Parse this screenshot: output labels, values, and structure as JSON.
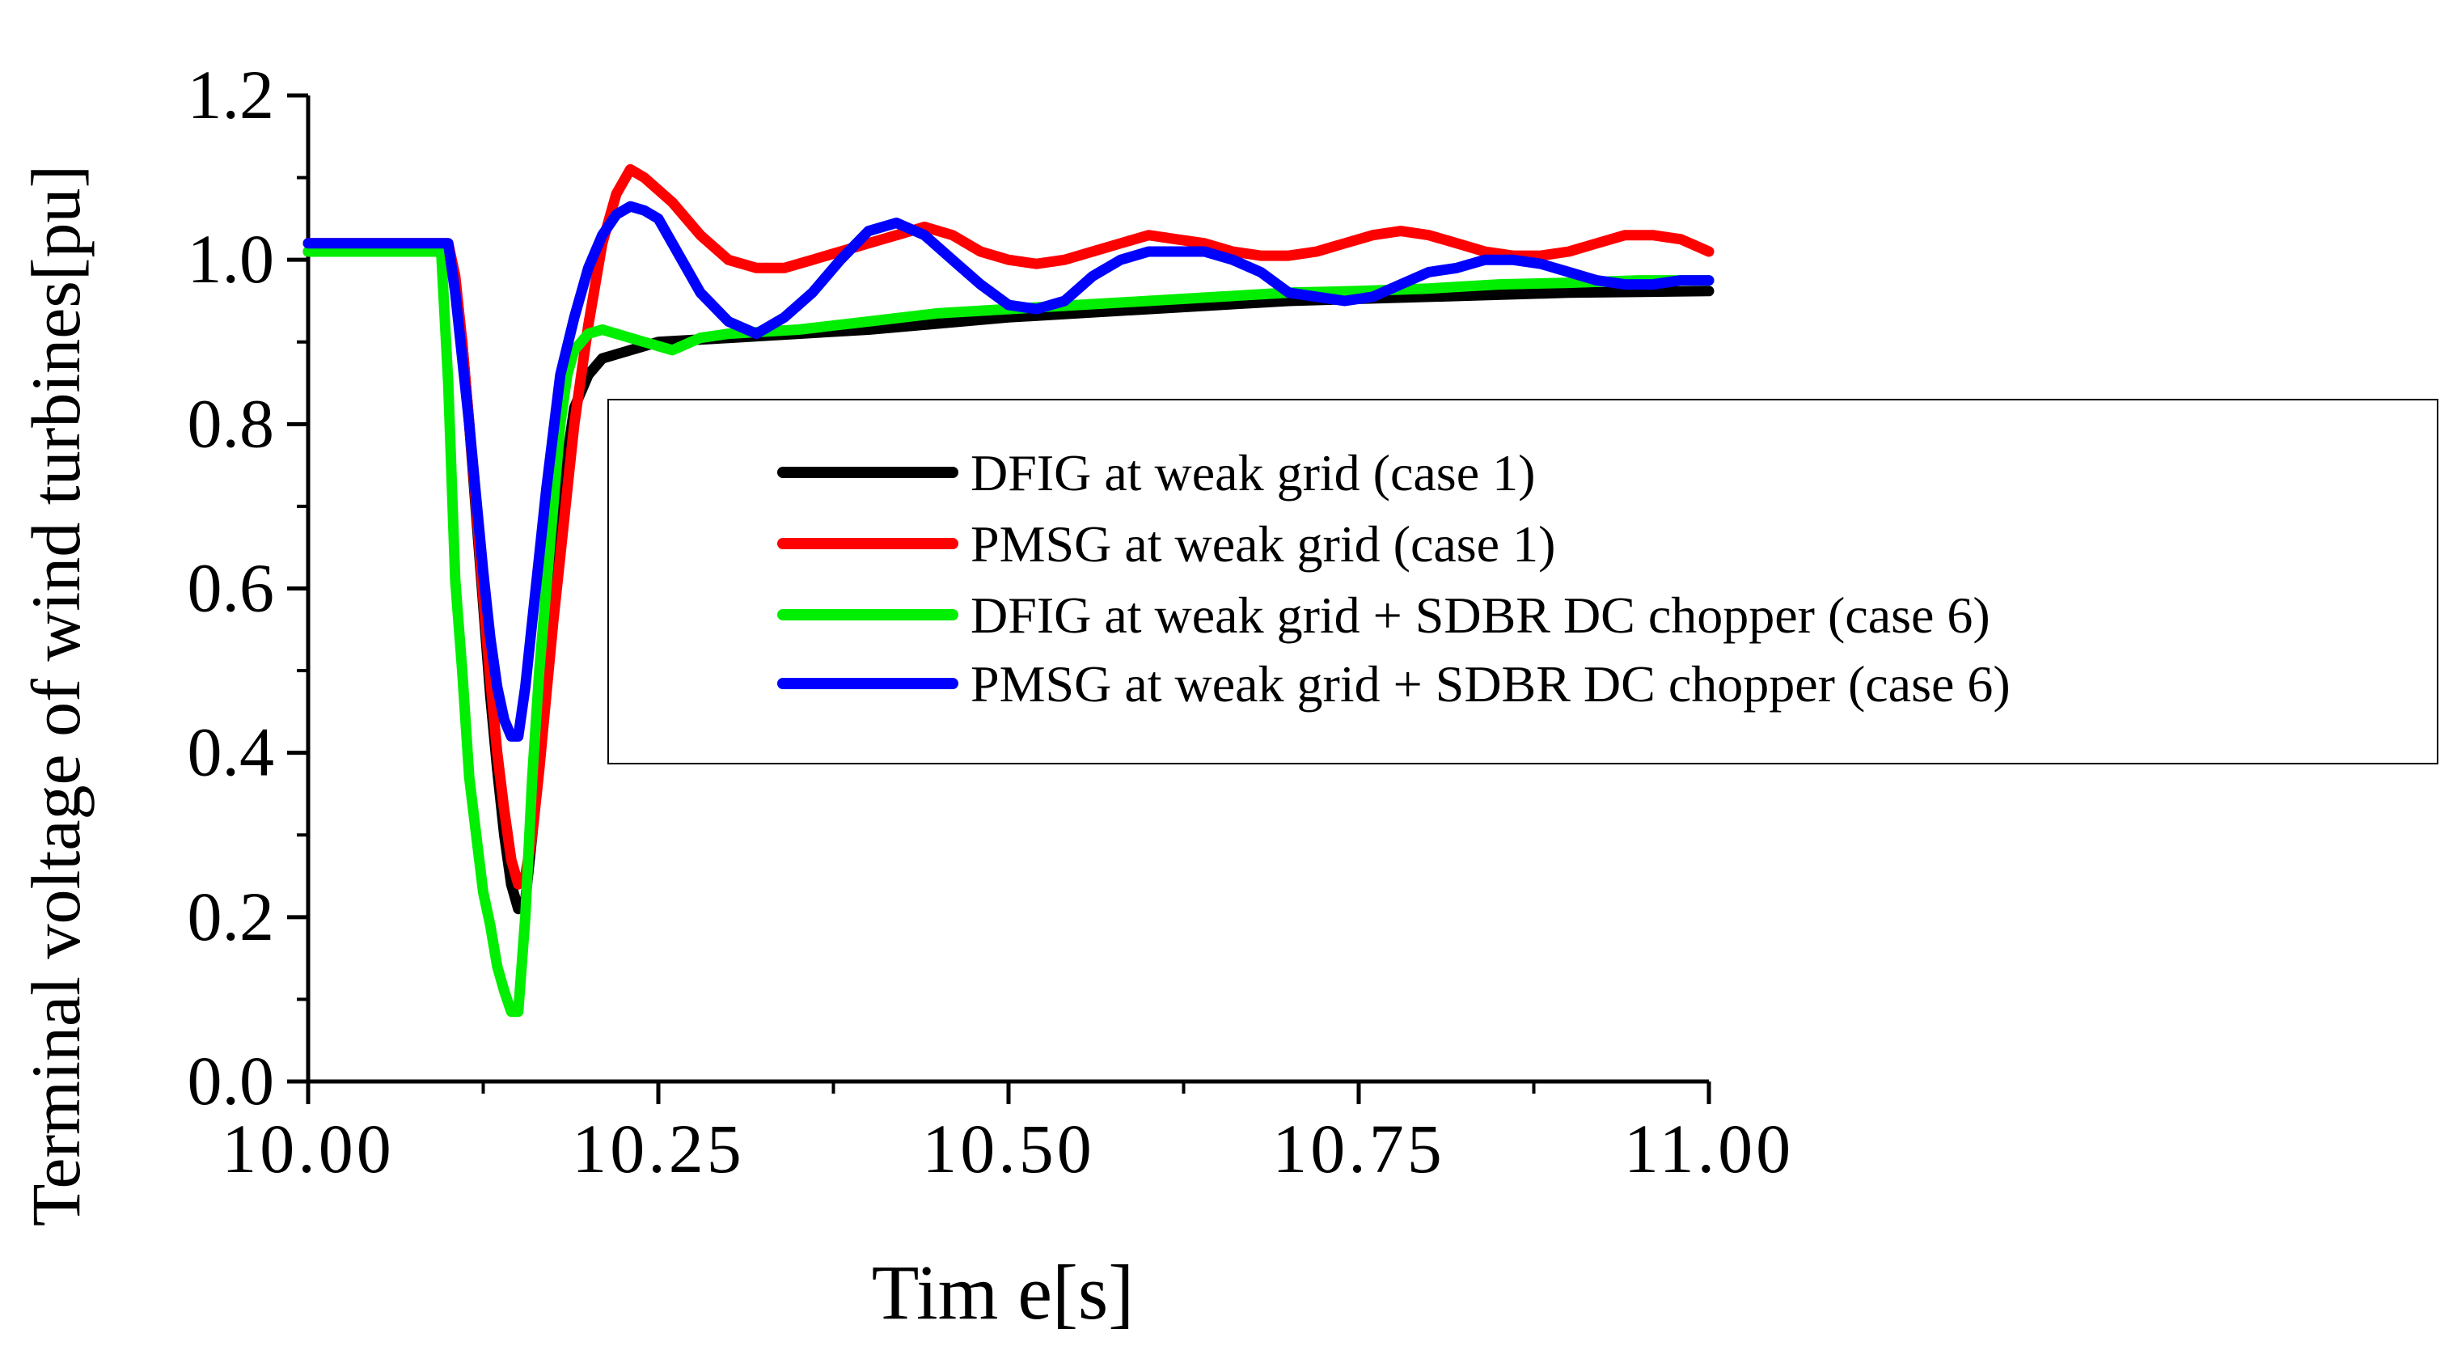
{
  "chart_data": {
    "type": "line",
    "title": "",
    "xlabel": "Tim e[s]",
    "ylabel": "Terminal voltage of wind turbines[pu]",
    "xlim": [
      10.0,
      11.0
    ],
    "ylim": [
      0.0,
      1.2
    ],
    "xticks": [
      10.0,
      10.25,
      10.5,
      10.75,
      11.0
    ],
    "xtick_labels": [
      "10.00",
      "10.25",
      "10.50",
      "10.75",
      "11.00"
    ],
    "yticks": [
      0.0,
      0.2,
      0.4,
      0.6,
      0.8,
      1.0,
      1.2
    ],
    "ytick_labels": [
      "0.0",
      "0.2",
      "0.4",
      "0.6",
      "0.8",
      "1.0",
      "1.2"
    ],
    "grid": false,
    "legend_position": "center-right",
    "series": [
      {
        "name": "DFIG at weak grid (case 1)",
        "color": "#000000",
        "points": [
          [
            10.0,
            1.01
          ],
          [
            10.1,
            1.01
          ],
          [
            10.105,
            0.97
          ],
          [
            10.11,
            0.9
          ],
          [
            10.115,
            0.8
          ],
          [
            10.12,
            0.69
          ],
          [
            10.125,
            0.58
          ],
          [
            10.13,
            0.47
          ],
          [
            10.135,
            0.38
          ],
          [
            10.14,
            0.3
          ],
          [
            10.145,
            0.24
          ],
          [
            10.15,
            0.21
          ],
          [
            10.155,
            0.22
          ],
          [
            10.16,
            0.3
          ],
          [
            10.165,
            0.4
          ],
          [
            10.17,
            0.5
          ],
          [
            10.175,
            0.6
          ],
          [
            10.18,
            0.68
          ],
          [
            10.185,
            0.76
          ],
          [
            10.19,
            0.82
          ],
          [
            10.2,
            0.86
          ],
          [
            10.21,
            0.88
          ],
          [
            10.25,
            0.9
          ],
          [
            10.3,
            0.905
          ],
          [
            10.4,
            0.915
          ],
          [
            10.5,
            0.93
          ],
          [
            10.6,
            0.94
          ],
          [
            10.7,
            0.95
          ],
          [
            10.8,
            0.955
          ],
          [
            10.9,
            0.96
          ],
          [
            11.0,
            0.962
          ]
        ]
      },
      {
        "name": "PMSG at weak grid (case 1)",
        "color": "#ff0000",
        "points": [
          [
            10.0,
            1.02
          ],
          [
            10.1,
            1.02
          ],
          [
            10.105,
            0.98
          ],
          [
            10.11,
            0.9
          ],
          [
            10.115,
            0.8
          ],
          [
            10.12,
            0.7
          ],
          [
            10.125,
            0.59
          ],
          [
            10.13,
            0.49
          ],
          [
            10.135,
            0.4
          ],
          [
            10.14,
            0.33
          ],
          [
            10.145,
            0.27
          ],
          [
            10.15,
            0.24
          ],
          [
            10.155,
            0.25
          ],
          [
            10.16,
            0.3
          ],
          [
            10.165,
            0.38
          ],
          [
            10.17,
            0.47
          ],
          [
            10.175,
            0.56
          ],
          [
            10.18,
            0.64
          ],
          [
            10.185,
            0.72
          ],
          [
            10.19,
            0.8
          ],
          [
            10.195,
            0.86
          ],
          [
            10.2,
            0.92
          ],
          [
            10.21,
            1.02
          ],
          [
            10.22,
            1.08
          ],
          [
            10.23,
            1.11
          ],
          [
            10.24,
            1.1
          ],
          [
            10.26,
            1.07
          ],
          [
            10.28,
            1.03
          ],
          [
            10.3,
            1.0
          ],
          [
            10.32,
            0.99
          ],
          [
            10.34,
            0.99
          ],
          [
            10.36,
            1.0
          ],
          [
            10.38,
            1.01
          ],
          [
            10.4,
            1.02
          ],
          [
            10.42,
            1.03
          ],
          [
            10.44,
            1.04
          ],
          [
            10.46,
            1.03
          ],
          [
            10.48,
            1.01
          ],
          [
            10.5,
            1.0
          ],
          [
            10.52,
            0.995
          ],
          [
            10.54,
            1.0
          ],
          [
            10.56,
            1.01
          ],
          [
            10.58,
            1.02
          ],
          [
            10.6,
            1.03
          ],
          [
            10.62,
            1.025
          ],
          [
            10.64,
            1.02
          ],
          [
            10.66,
            1.01
          ],
          [
            10.68,
            1.005
          ],
          [
            10.7,
            1.005
          ],
          [
            10.72,
            1.01
          ],
          [
            10.74,
            1.02
          ],
          [
            10.76,
            1.03
          ],
          [
            10.78,
            1.035
          ],
          [
            10.8,
            1.03
          ],
          [
            10.82,
            1.02
          ],
          [
            10.84,
            1.01
          ],
          [
            10.86,
            1.005
          ],
          [
            10.88,
            1.005
          ],
          [
            10.9,
            1.01
          ],
          [
            10.92,
            1.02
          ],
          [
            10.94,
            1.03
          ],
          [
            10.96,
            1.03
          ],
          [
            10.98,
            1.025
          ],
          [
            11.0,
            1.01
          ]
        ]
      },
      {
        "name": "DFIG at weak grid + SDBR DC chopper (case 6)",
        "color": "#00ee00",
        "points": [
          [
            10.0,
            1.01
          ],
          [
            10.095,
            1.01
          ],
          [
            10.1,
            0.85
          ],
          [
            10.105,
            0.61
          ],
          [
            10.11,
            0.5
          ],
          [
            10.115,
            0.37
          ],
          [
            10.12,
            0.3
          ],
          [
            10.125,
            0.23
          ],
          [
            10.13,
            0.19
          ],
          [
            10.135,
            0.14
          ],
          [
            10.14,
            0.11
          ],
          [
            10.145,
            0.085
          ],
          [
            10.15,
            0.085
          ],
          [
            10.155,
            0.2
          ],
          [
            10.16,
            0.37
          ],
          [
            10.165,
            0.5
          ],
          [
            10.17,
            0.6
          ],
          [
            10.175,
            0.7
          ],
          [
            10.18,
            0.8
          ],
          [
            10.185,
            0.86
          ],
          [
            10.19,
            0.89
          ],
          [
            10.2,
            0.91
          ],
          [
            10.21,
            0.915
          ],
          [
            10.22,
            0.91
          ],
          [
            10.24,
            0.9
          ],
          [
            10.26,
            0.89
          ],
          [
            10.28,
            0.905
          ],
          [
            10.3,
            0.91
          ],
          [
            10.35,
            0.915
          ],
          [
            10.4,
            0.925
          ],
          [
            10.45,
            0.935
          ],
          [
            10.5,
            0.94
          ],
          [
            10.55,
            0.945
          ],
          [
            10.6,
            0.95
          ],
          [
            10.65,
            0.955
          ],
          [
            10.7,
            0.96
          ],
          [
            10.75,
            0.962
          ],
          [
            10.8,
            0.965
          ],
          [
            10.85,
            0.97
          ],
          [
            10.9,
            0.972
          ],
          [
            10.95,
            0.975
          ],
          [
            11.0,
            0.975
          ]
        ]
      },
      {
        "name": "PMSG at weak grid + SDBR DC chopper (case 6)",
        "color": "#0000ff",
        "points": [
          [
            10.0,
            1.02
          ],
          [
            10.1,
            1.02
          ],
          [
            10.105,
            0.96
          ],
          [
            10.11,
            0.88
          ],
          [
            10.115,
            0.8
          ],
          [
            10.12,
            0.71
          ],
          [
            10.125,
            0.62
          ],
          [
            10.13,
            0.54
          ],
          [
            10.135,
            0.48
          ],
          [
            10.14,
            0.44
          ],
          [
            10.145,
            0.42
          ],
          [
            10.15,
            0.42
          ],
          [
            10.155,
            0.48
          ],
          [
            10.16,
            0.56
          ],
          [
            10.165,
            0.64
          ],
          [
            10.17,
            0.72
          ],
          [
            10.175,
            0.79
          ],
          [
            10.18,
            0.86
          ],
          [
            10.19,
            0.93
          ],
          [
            10.2,
            0.99
          ],
          [
            10.21,
            1.03
          ],
          [
            10.22,
            1.055
          ],
          [
            10.23,
            1.065
          ],
          [
            10.24,
            1.06
          ],
          [
            10.25,
            1.05
          ],
          [
            10.26,
            1.02
          ],
          [
            10.28,
            0.96
          ],
          [
            10.3,
            0.925
          ],
          [
            10.32,
            0.91
          ],
          [
            10.34,
            0.93
          ],
          [
            10.36,
            0.96
          ],
          [
            10.38,
            1.0
          ],
          [
            10.4,
            1.035
          ],
          [
            10.42,
            1.045
          ],
          [
            10.44,
            1.03
          ],
          [
            10.46,
            1.0
          ],
          [
            10.48,
            0.97
          ],
          [
            10.5,
            0.945
          ],
          [
            10.52,
            0.94
          ],
          [
            10.54,
            0.95
          ],
          [
            10.56,
            0.98
          ],
          [
            10.58,
            1.0
          ],
          [
            10.6,
            1.01
          ],
          [
            10.62,
            1.01
          ],
          [
            10.64,
            1.01
          ],
          [
            10.66,
            1.0
          ],
          [
            10.68,
            0.985
          ],
          [
            10.7,
            0.96
          ],
          [
            10.72,
            0.955
          ],
          [
            10.74,
            0.95
          ],
          [
            10.76,
            0.955
          ],
          [
            10.78,
            0.97
          ],
          [
            10.8,
            0.985
          ],
          [
            10.82,
            0.99
          ],
          [
            10.84,
            1.0
          ],
          [
            10.86,
            1.0
          ],
          [
            10.88,
            0.995
          ],
          [
            10.9,
            0.985
          ],
          [
            10.92,
            0.975
          ],
          [
            10.94,
            0.97
          ],
          [
            10.96,
            0.97
          ],
          [
            10.98,
            0.975
          ],
          [
            11.0,
            0.975
          ]
        ]
      }
    ]
  }
}
